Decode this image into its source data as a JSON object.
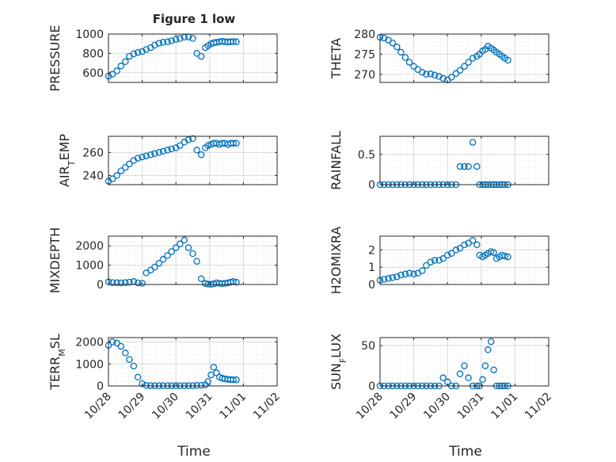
{
  "figure": {
    "title": "Figure 1 low",
    "xlabel": "Time"
  },
  "colors": {
    "marker": "#0072BD",
    "axis": "#262626",
    "grid": "#D9D9D9",
    "minor_grid": "#E8E8E8"
  },
  "x_axis": {
    "range": [
      "10/28",
      "11/02"
    ],
    "ticks": [
      "10/28",
      "10/29",
      "10/30",
      "10/31",
      "11/01",
      "11/02"
    ]
  },
  "chart_data": [
    {
      "type": "scatter",
      "panel": "left",
      "row": 0,
      "ylabel": "PRESSURE",
      "ylim": [
        500,
        1000
      ],
      "yticks": [
        600,
        800,
        1000
      ],
      "grid": true,
      "x": [
        0.0,
        0.12,
        0.25,
        0.37,
        0.5,
        0.62,
        0.75,
        0.87,
        1.0,
        1.12,
        1.25,
        1.37,
        1.5,
        1.62,
        1.75,
        1.87,
        2.0,
        2.12,
        2.25,
        2.37,
        2.5,
        2.62,
        2.75,
        2.87,
        2.95,
        3.04,
        3.12,
        3.2,
        3.29,
        3.37,
        3.45,
        3.54,
        3.62,
        3.7,
        3.79
      ],
      "y": [
        565,
        585,
        620,
        670,
        715,
        770,
        795,
        810,
        820,
        840,
        860,
        885,
        905,
        915,
        920,
        930,
        945,
        955,
        968,
        970,
        955,
        800,
        770,
        860,
        880,
        900,
        910,
        915,
        920,
        925,
        920,
        918,
        920,
        922,
        920
      ]
    },
    {
      "type": "scatter",
      "panel": "right",
      "row": 0,
      "ylabel": "THETA",
      "ylim": [
        268,
        280
      ],
      "yticks": [
        270,
        275,
        280
      ],
      "grid": true,
      "x": [
        0.0,
        0.12,
        0.25,
        0.37,
        0.5,
        0.62,
        0.75,
        0.87,
        1.0,
        1.12,
        1.25,
        1.37,
        1.5,
        1.62,
        1.75,
        1.87,
        2.0,
        2.12,
        2.25,
        2.37,
        2.5,
        2.62,
        2.75,
        2.87,
        2.95,
        3.04,
        3.12,
        3.2,
        3.29,
        3.37,
        3.45,
        3.54,
        3.62,
        3.7,
        3.79
      ],
      "y": [
        279.2,
        279.0,
        278.5,
        277.8,
        276.8,
        275.5,
        274.2,
        273.0,
        272.0,
        271.2,
        270.5,
        270.0,
        270.1,
        269.8,
        269.5,
        269.0,
        268.6,
        269.3,
        270.2,
        271.0,
        272.0,
        273.0,
        274.0,
        274.5,
        275.0,
        275.8,
        276.2,
        277.0,
        276.5,
        276.0,
        275.5,
        275.0,
        274.5,
        274.0,
        273.5
      ]
    },
    {
      "type": "scatter",
      "panel": "left",
      "row": 1,
      "ylabel": "AIR_TEMP",
      "ylim": [
        232,
        274
      ],
      "yticks": [
        240,
        260
      ],
      "grid": true,
      "x": [
        0.0,
        0.12,
        0.25,
        0.37,
        0.5,
        0.62,
        0.75,
        0.87,
        1.0,
        1.12,
        1.25,
        1.37,
        1.5,
        1.62,
        1.75,
        1.87,
        2.0,
        2.12,
        2.25,
        2.37,
        2.5,
        2.62,
        2.75,
        2.87,
        2.95,
        3.04,
        3.12,
        3.2,
        3.29,
        3.37,
        3.45,
        3.54,
        3.62,
        3.7,
        3.79
      ],
      "y": [
        235,
        237,
        240,
        244,
        247,
        250,
        253,
        255,
        256,
        257,
        258,
        259,
        260,
        261,
        262,
        263,
        264,
        266,
        269,
        271,
        272,
        262,
        258,
        264,
        266,
        267,
        268,
        268,
        267,
        268,
        268,
        267,
        268,
        268,
        268
      ]
    },
    {
      "type": "scatter",
      "panel": "right",
      "row": 1,
      "ylabel": "RAINFALL",
      "ylim": [
        0,
        0.8
      ],
      "yticks": [
        0,
        0.5
      ],
      "grid": true,
      "x": [
        0.0,
        0.12,
        0.25,
        0.37,
        0.5,
        0.62,
        0.75,
        0.87,
        1.0,
        1.12,
        1.25,
        1.37,
        1.5,
        1.62,
        1.75,
        1.87,
        2.0,
        2.12,
        2.25,
        2.37,
        2.5,
        2.62,
        2.75,
        2.87,
        2.95,
        3.04,
        3.12,
        3.2,
        3.29,
        3.37,
        3.45,
        3.54,
        3.62,
        3.7,
        3.79
      ],
      "y": [
        0,
        0,
        0,
        0,
        0,
        0,
        0,
        0,
        0,
        0,
        0,
        0,
        0,
        0,
        0,
        0,
        0,
        0,
        0,
        0.3,
        0.3,
        0.3,
        0.7,
        0.3,
        0,
        0,
        0,
        0,
        0,
        0,
        0,
        0,
        0,
        0,
        0
      ]
    },
    {
      "type": "scatter",
      "panel": "left",
      "row": 2,
      "ylabel": "MIXDEPTH",
      "ylim": [
        0,
        2500
      ],
      "yticks": [
        0,
        1000,
        2000
      ],
      "grid": true,
      "x": [
        0.0,
        0.12,
        0.25,
        0.37,
        0.5,
        0.62,
        0.75,
        0.87,
        1.0,
        1.12,
        1.25,
        1.37,
        1.5,
        1.62,
        1.75,
        1.87,
        2.0,
        2.12,
        2.25,
        2.37,
        2.5,
        2.62,
        2.75,
        2.87,
        2.95,
        3.04,
        3.12,
        3.2,
        3.29,
        3.37,
        3.45,
        3.54,
        3.62,
        3.7,
        3.79
      ],
      "y": [
        130,
        100,
        90,
        80,
        100,
        120,
        150,
        80,
        60,
        600,
        750,
        900,
        1100,
        1300,
        1500,
        1700,
        1900,
        2100,
        2300,
        1900,
        1600,
        1200,
        300,
        50,
        20,
        10,
        30,
        80,
        60,
        40,
        60,
        80,
        120,
        150,
        120
      ]
    },
    {
      "type": "scatter",
      "panel": "right",
      "row": 2,
      "ylabel": "H2OMIXRA",
      "ylim": [
        0,
        2.8
      ],
      "yticks": [
        0,
        1,
        2
      ],
      "grid": true,
      "x": [
        0.0,
        0.12,
        0.25,
        0.37,
        0.5,
        0.62,
        0.75,
        0.87,
        1.0,
        1.12,
        1.25,
        1.37,
        1.5,
        1.62,
        1.75,
        1.87,
        2.0,
        2.12,
        2.25,
        2.37,
        2.5,
        2.62,
        2.75,
        2.87,
        2.95,
        3.04,
        3.12,
        3.2,
        3.29,
        3.37,
        3.45,
        3.54,
        3.62,
        3.7,
        3.79
      ],
      "y": [
        0.25,
        0.3,
        0.35,
        0.4,
        0.45,
        0.55,
        0.6,
        0.65,
        0.6,
        0.65,
        0.8,
        1.1,
        1.3,
        1.4,
        1.4,
        1.5,
        1.7,
        1.8,
        2.0,
        2.1,
        2.3,
        2.4,
        2.55,
        2.3,
        1.7,
        1.6,
        1.7,
        1.8,
        1.9,
        1.85,
        1.5,
        1.6,
        1.7,
        1.65,
        1.6
      ]
    },
    {
      "type": "scatter",
      "panel": "left",
      "row": 3,
      "ylabel": "TERR_MSL",
      "ylim": [
        0,
        2200
      ],
      "yticks": [
        0,
        1000,
        2000
      ],
      "grid": true,
      "x": [
        0.0,
        0.12,
        0.25,
        0.37,
        0.5,
        0.62,
        0.75,
        0.87,
        1.0,
        1.12,
        1.25,
        1.37,
        1.5,
        1.62,
        1.75,
        1.87,
        2.0,
        2.12,
        2.25,
        2.37,
        2.5,
        2.62,
        2.75,
        2.87,
        2.95,
        3.04,
        3.12,
        3.2,
        3.29,
        3.37,
        3.45,
        3.54,
        3.62,
        3.7,
        3.79
      ],
      "y": [
        1850,
        2000,
        1950,
        1800,
        1500,
        1200,
        900,
        400,
        100,
        20,
        10,
        10,
        10,
        10,
        10,
        10,
        10,
        10,
        10,
        10,
        10,
        20,
        30,
        50,
        200,
        500,
        850,
        600,
        400,
        350,
        320,
        300,
        290,
        280,
        280
      ]
    },
    {
      "type": "scatter",
      "panel": "right",
      "row": 3,
      "ylabel": "SUN_FLUX",
      "ylim": [
        0,
        60
      ],
      "yticks": [
        0,
        50
      ],
      "grid": true,
      "x": [
        0.0,
        0.12,
        0.25,
        0.37,
        0.5,
        0.62,
        0.75,
        0.87,
        1.0,
        1.12,
        1.25,
        1.37,
        1.5,
        1.62,
        1.75,
        1.87,
        2.0,
        2.12,
        2.25,
        2.37,
        2.5,
        2.62,
        2.75,
        2.87,
        2.95,
        3.04,
        3.12,
        3.2,
        3.29,
        3.37,
        3.45,
        3.54,
        3.62,
        3.7,
        3.79
      ],
      "y": [
        0,
        0,
        0,
        0,
        0,
        0,
        0,
        0,
        0,
        0,
        0,
        0,
        0,
        0,
        0,
        10,
        5,
        0,
        0,
        15,
        25,
        10,
        0,
        0,
        0,
        8,
        25,
        45,
        55,
        20,
        0,
        0,
        0,
        0,
        0
      ]
    }
  ]
}
